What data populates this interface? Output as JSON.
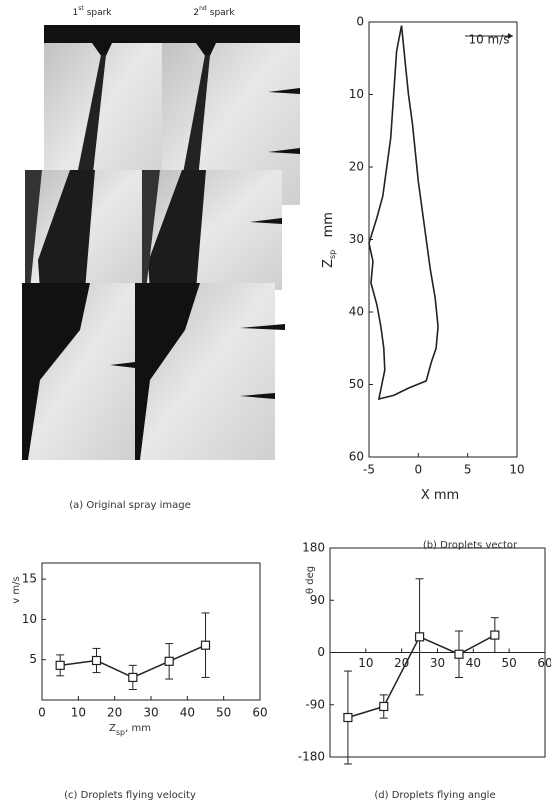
{
  "image_panel": {
    "caption": "(a) Original spray image",
    "spark_labels": [
      {
        "number": "1",
        "suffix": "st",
        "word": "spark"
      },
      {
        "number": "2",
        "suffix": "nd",
        "word": "spark"
      }
    ]
  },
  "chart_data": [
    {
      "type": "line",
      "caption": "(b) Droplets vector",
      "xlabel": "X   mm",
      "ylabel": "Z",
      "ylabel_sub": "sp",
      "ylabel_unit": "   mm",
      "annotation": "10 m/s",
      "x": [
        -1.7,
        -2.2,
        -2.4,
        -2.6,
        -2.8,
        -3.2,
        -3.6,
        -4.2,
        -5,
        -4.6,
        -4.8,
        -4.2,
        -3.8,
        -3.5,
        -3.4,
        -4,
        -2.5,
        -1,
        0.8,
        1.3,
        1.8,
        2,
        1.7,
        1.2,
        0.8,
        0.4,
        0,
        -0.3,
        -0.6,
        -1,
        -1.3,
        -1.7
      ],
      "values": [
        0.5,
        4,
        8,
        12,
        16,
        20,
        24,
        27,
        30.5,
        33,
        36,
        39,
        42,
        45,
        48,
        52,
        51.5,
        50.5,
        49.5,
        47,
        45,
        42,
        38,
        34,
        30,
        26,
        22,
        18,
        14,
        10,
        6,
        0.5
      ],
      "color": "#222222",
      "xlim": [
        -5,
        10
      ],
      "xticks": [
        -5,
        0,
        5,
        10
      ],
      "ylim": [
        60,
        0
      ],
      "yticks": [
        0,
        10,
        20,
        30,
        40,
        50,
        60
      ]
    },
    {
      "type": "errorline",
      "caption": "(c) Droplets flying velocity",
      "xlabel": "Z",
      "xlabel_sub": "sp",
      "xlabel_unit": ", mm",
      "ylabel": "v   m/s",
      "x": [
        5,
        15,
        25,
        35,
        45
      ],
      "values": [
        4.3,
        4.9,
        2.8,
        4.8,
        6.8
      ],
      "errors": [
        1.3,
        1.5,
        1.5,
        2.2,
        4
      ],
      "color": "#222222",
      "xlim": [
        0,
        60
      ],
      "xticks": [
        0,
        10,
        20,
        30,
        40,
        50,
        60
      ],
      "ylim": [
        0,
        17
      ],
      "yticks": [
        5,
        10,
        15
      ]
    },
    {
      "type": "errorline",
      "caption": "(d) Droplets flying angle",
      "ylabel": "θ   deg",
      "x": [
        5,
        15,
        25,
        36,
        46
      ],
      "values": [
        -112,
        -93,
        27,
        -3,
        30
      ],
      "errors": [
        80,
        20,
        100,
        40,
        30
      ],
      "color": "#222222",
      "xlim": [
        0,
        60
      ],
      "xticks": [
        10,
        20,
        30,
        40,
        50,
        60
      ],
      "ylim": [
        -180,
        180
      ],
      "yticks": [
        180,
        90,
        0,
        -90,
        -180
      ]
    }
  ]
}
